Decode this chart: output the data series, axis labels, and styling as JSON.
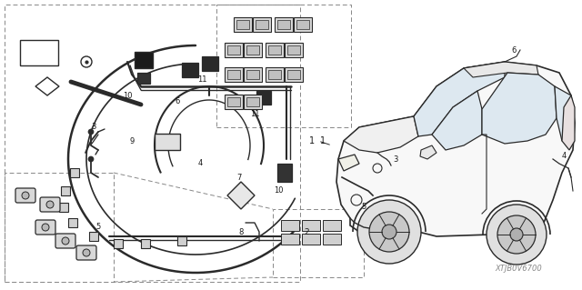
{
  "background_color": "#ffffff",
  "line_color": "#2a2a2a",
  "dashed_color": "#888888",
  "label_color": "#1a1a1a",
  "watermark": "XTJB0V6700",
  "figsize": [
    6.4,
    3.19
  ],
  "dpi": 100
}
